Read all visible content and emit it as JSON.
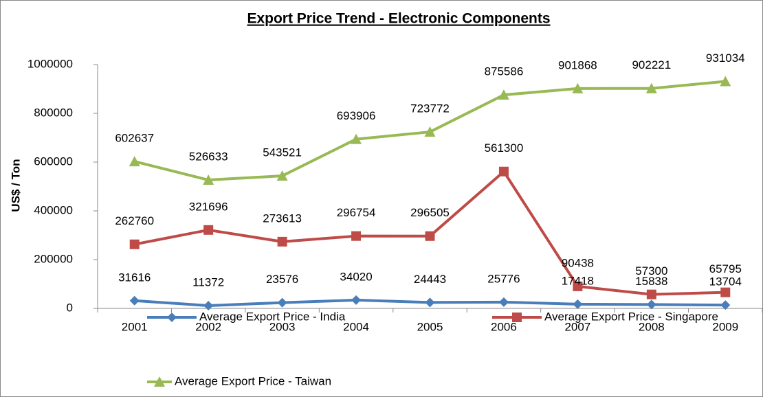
{
  "chart_data": {
    "type": "line",
    "title": "Export Price Trend - Electronic Components",
    "y_label": "US$ / Ton",
    "categories": [
      "2001",
      "2002",
      "2003",
      "2004",
      "2005",
      "2006",
      "2007",
      "2008",
      "2009"
    ],
    "series": [
      {
        "name": "Average Export Price - India",
        "color": "#4a7ebb",
        "marker": "diamond",
        "values": [
          31616,
          11372,
          23576,
          34020,
          24443,
          25776,
          17418,
          15838,
          13704
        ]
      },
      {
        "name": "Average Export Price - Singapore",
        "color": "#be4b48",
        "marker": "square",
        "values": [
          262760,
          321696,
          273613,
          296754,
          296505,
          561300,
          90438,
          57300,
          65795
        ]
      },
      {
        "name": "Average Export Price - Taiwan",
        "color": "#98b954",
        "marker": "triangle",
        "values": [
          602637,
          526633,
          543521,
          693906,
          723772,
          875586,
          901868,
          902221,
          931034
        ]
      }
    ],
    "ylim": [
      0,
      1000000
    ],
    "yticks": [
      0,
      200000,
      400000,
      600000,
      800000,
      1000000
    ],
    "grid": false,
    "data_labels": true
  }
}
